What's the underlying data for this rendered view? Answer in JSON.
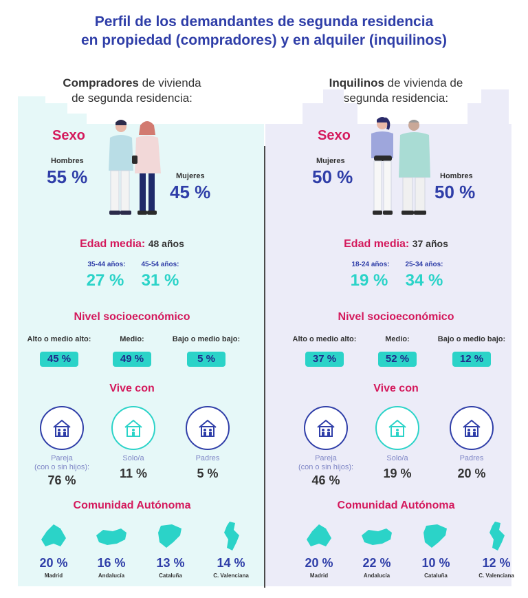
{
  "title": {
    "line1": "Perfil de los demandantes de segunda residencia",
    "line2": "en propiedad (compradores) y en alquiler (inquilinos)"
  },
  "colors": {
    "title": "#2f3ea8",
    "accent_pink": "#d4195c",
    "accent_teal": "#2bd3c8",
    "panel_left": "#e6f8f8",
    "panel_right": "#ececf8"
  },
  "left": {
    "heading_bold": "Compradores",
    "heading_rest1": " de vivienda",
    "heading_rest2": "de segunda residencia:",
    "sexo": {
      "title": "Sexo",
      "a_label": "Hombres",
      "a_pct": "55 %",
      "b_label": "Mujeres",
      "b_pct": "45 %"
    },
    "edad": {
      "title": "Edad media:",
      "value": "48 años",
      "g1_label": "35-44 años:",
      "g1_pct": "27 %",
      "g2_label": "45-54 años:",
      "g2_pct": "31 %"
    },
    "nse": {
      "title": "Nivel socioeconómico",
      "items": [
        {
          "label": "Alto o medio alto:",
          "pct": "45 %"
        },
        {
          "label": "Medio:",
          "pct": "49 %"
        },
        {
          "label": "Bajo o medio bajo:",
          "pct": "5 %"
        }
      ]
    },
    "vive": {
      "title": "Vive con",
      "items": [
        {
          "label1": "Pareja",
          "label2": "(con o sin hijos):",
          "pct": "76 %",
          "icon": "family-house-icon"
        },
        {
          "label1": "Solo/a",
          "label2": "",
          "pct": "11 %",
          "icon": "single-house-icon"
        },
        {
          "label1": "Padres",
          "label2": "",
          "pct": "5 %",
          "icon": "parents-house-icon"
        }
      ]
    },
    "region": {
      "title": "Comunidad Autónoma",
      "items": [
        {
          "pct": "20 %",
          "name": "Madrid",
          "icon": "madrid-map-icon"
        },
        {
          "pct": "16 %",
          "name": "Andalucía",
          "icon": "andalucia-map-icon"
        },
        {
          "pct": "13 %",
          "name": "Cataluña",
          "icon": "cataluna-map-icon"
        },
        {
          "pct": "14 %",
          "name": "C. Valenciana",
          "icon": "valencia-map-icon"
        }
      ]
    }
  },
  "right": {
    "heading_bold": "Inquilinos",
    "heading_rest1": " de vivienda de",
    "heading_rest2": "segunda residencia:",
    "sexo": {
      "title": "Sexo",
      "a_label": "Mujeres",
      "a_pct": "50 %",
      "b_label": "Hombres",
      "b_pct": "50 %"
    },
    "edad": {
      "title": "Edad media:",
      "value": "37 años",
      "g1_label": "18-24 años:",
      "g1_pct": "19 %",
      "g2_label": "25-34 años:",
      "g2_pct": "34 %"
    },
    "nse": {
      "title": "Nivel socioeconómico",
      "items": [
        {
          "label": "Alto o medio alto:",
          "pct": "37 %"
        },
        {
          "label": "Medio:",
          "pct": "52 %"
        },
        {
          "label": "Bajo o medio bajo:",
          "pct": "12 %"
        }
      ]
    },
    "vive": {
      "title": "Vive con",
      "items": [
        {
          "label1": "Pareja",
          "label2": "(con o sin hijos):",
          "pct": "46 %",
          "icon": "family-house-icon"
        },
        {
          "label1": "Solo/a",
          "label2": "",
          "pct": "19 %",
          "icon": "single-house-icon"
        },
        {
          "label1": "Padres",
          "label2": "",
          "pct": "20 %",
          "icon": "parents-house-icon"
        }
      ]
    },
    "region": {
      "title": "Comunidad Autónoma",
      "items": [
        {
          "pct": "20 %",
          "name": "Madrid",
          "icon": "madrid-map-icon"
        },
        {
          "pct": "22 %",
          "name": "Andalucía",
          "icon": "andalucia-map-icon"
        },
        {
          "pct": "10 %",
          "name": "Cataluña",
          "icon": "cataluna-map-icon"
        },
        {
          "pct": "12 %",
          "name": "C. Valenciana",
          "icon": "valencia-map-icon"
        }
      ]
    }
  }
}
